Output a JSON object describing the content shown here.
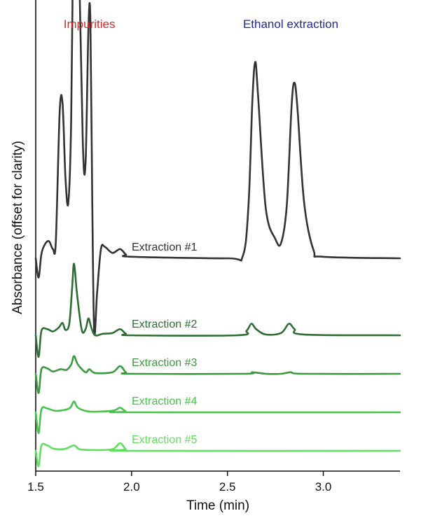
{
  "chart_data": {
    "type": "line",
    "title": "",
    "xlabel": "Time (min)",
    "ylabel": "Absorbance (offset for clarity)",
    "xlim": [
      1.5,
      3.4
    ],
    "xticks": [
      "1.5",
      "2.0",
      "2.5",
      "3.0"
    ],
    "grid": false,
    "legend": "none (series labelled inline above each trace)",
    "annotations": [
      {
        "text": "Impurities",
        "x": 1.78,
        "color": "#d42a2a"
      },
      {
        "text": "Ethanol extraction",
        "x": 2.83,
        "color": "#1f2a9c"
      }
    ],
    "series": [
      {
        "name": "Extraction #1",
        "color": "#333333",
        "baseline": 0,
        "values": [
          [
            1.5,
            0
          ],
          [
            1.515,
            -0.25
          ],
          [
            1.53,
            0.06
          ],
          [
            1.55,
            0.19
          ],
          [
            1.57,
            0.22
          ],
          [
            1.59,
            0.12
          ],
          [
            1.605,
            0.22
          ],
          [
            1.625,
            1.9
          ],
          [
            1.64,
            2.01
          ],
          [
            1.655,
            1.05
          ],
          [
            1.67,
            0.72
          ],
          [
            1.685,
            1.8
          ],
          [
            1.695,
            4.2
          ],
          [
            1.705,
            6.4
          ],
          [
            1.72,
            4.7
          ],
          [
            1.745,
            1.55
          ],
          [
            1.76,
            1.25
          ],
          [
            1.775,
            3.0
          ],
          [
            1.785,
            3.1
          ],
          [
            1.795,
            0.75
          ],
          [
            1.805,
            -0.95
          ],
          [
            1.82,
            -0.45
          ],
          [
            1.84,
            0.12
          ],
          [
            1.86,
            0.15
          ],
          [
            1.9,
            0.07
          ],
          [
            1.94,
            0.12
          ],
          [
            1.97,
            0.05
          ],
          [
            2.0,
            0.02
          ],
          [
            2.5,
            0.0
          ],
          [
            2.58,
            0.03
          ],
          [
            2.61,
            0.7
          ],
          [
            2.63,
            2.05
          ],
          [
            2.645,
            2.55
          ],
          [
            2.66,
            2.1
          ],
          [
            2.7,
            0.65
          ],
          [
            2.75,
            0.25
          ],
          [
            2.78,
            0.2
          ],
          [
            2.81,
            0.7
          ],
          [
            2.835,
            2.0
          ],
          [
            2.85,
            2.28
          ],
          [
            2.865,
            1.95
          ],
          [
            2.9,
            0.72
          ],
          [
            2.95,
            0.1
          ],
          [
            3.0,
            0.02
          ],
          [
            3.4,
            0.0
          ]
        ]
      },
      {
        "name": "Extraction #2",
        "color": "#2e6d33",
        "baseline": -1,
        "values": [
          [
            1.5,
            0
          ],
          [
            1.515,
            -0.28
          ],
          [
            1.53,
            0.06
          ],
          [
            1.56,
            0.08
          ],
          [
            1.59,
            0.05
          ],
          [
            1.62,
            0.1
          ],
          [
            1.64,
            0.16
          ],
          [
            1.655,
            0.07
          ],
          [
            1.675,
            0.15
          ],
          [
            1.69,
            0.62
          ],
          [
            1.7,
            0.93
          ],
          [
            1.715,
            0.55
          ],
          [
            1.74,
            0.07
          ],
          [
            1.76,
            0.08
          ],
          [
            1.775,
            0.22
          ],
          [
            1.79,
            0.1
          ],
          [
            1.81,
            0.0
          ],
          [
            1.85,
            0.02
          ],
          [
            1.9,
            0.03
          ],
          [
            1.94,
            0.08
          ],
          [
            1.97,
            0.02
          ],
          [
            2.0,
            0.0
          ],
          [
            2.55,
            0.0
          ],
          [
            2.6,
            0.06
          ],
          [
            2.625,
            0.15
          ],
          [
            2.65,
            0.08
          ],
          [
            2.7,
            0.01
          ],
          [
            2.78,
            0.03
          ],
          [
            2.82,
            0.15
          ],
          [
            2.85,
            0.08
          ],
          [
            2.9,
            0.01
          ],
          [
            3.4,
            0.0
          ]
        ]
      },
      {
        "name": "Extraction #3",
        "color": "#3a9a3e",
        "baseline": -1.5,
        "values": [
          [
            1.5,
            0
          ],
          [
            1.515,
            -0.25
          ],
          [
            1.53,
            0.06
          ],
          [
            1.56,
            0.07
          ],
          [
            1.59,
            0.03
          ],
          [
            1.63,
            0.06
          ],
          [
            1.66,
            0.05
          ],
          [
            1.685,
            0.12
          ],
          [
            1.7,
            0.23
          ],
          [
            1.72,
            0.12
          ],
          [
            1.76,
            0.02
          ],
          [
            1.78,
            0.06
          ],
          [
            1.81,
            0.01
          ],
          [
            1.9,
            0.02
          ],
          [
            1.94,
            0.1
          ],
          [
            1.97,
            0.02
          ],
          [
            2.0,
            0.0
          ],
          [
            2.58,
            0.0
          ],
          [
            2.63,
            0.02
          ],
          [
            2.7,
            0.0
          ],
          [
            2.78,
            0.0
          ],
          [
            2.83,
            0.02
          ],
          [
            2.9,
            0.0
          ],
          [
            3.4,
            0.0
          ]
        ]
      },
      {
        "name": "Extraction #4",
        "color": "#48c24a",
        "baseline": -2,
        "values": [
          [
            1.5,
            0
          ],
          [
            1.515,
            -0.27
          ],
          [
            1.53,
            0.04
          ],
          [
            1.56,
            0.05
          ],
          [
            1.6,
            0.02
          ],
          [
            1.65,
            0.03
          ],
          [
            1.68,
            0.06
          ],
          [
            1.7,
            0.14
          ],
          [
            1.72,
            0.06
          ],
          [
            1.78,
            0.01
          ],
          [
            1.9,
            0.02
          ],
          [
            1.94,
            0.06
          ],
          [
            1.97,
            0.01
          ],
          [
            2.0,
            0.0
          ],
          [
            3.4,
            0.0
          ]
        ]
      },
      {
        "name": "Extraction #5",
        "color": "#5fe05f",
        "baseline": -2.5,
        "values": [
          [
            1.5,
            0
          ],
          [
            1.515,
            -0.2
          ],
          [
            1.53,
            0.07
          ],
          [
            1.56,
            0.07
          ],
          [
            1.59,
            0.03
          ],
          [
            1.63,
            0.02
          ],
          [
            1.66,
            0.03
          ],
          [
            1.7,
            0.07
          ],
          [
            1.73,
            0.02
          ],
          [
            1.8,
            0.01
          ],
          [
            1.9,
            0.02
          ],
          [
            1.94,
            0.1
          ],
          [
            1.97,
            0.02
          ],
          [
            2.0,
            0.0
          ],
          [
            3.4,
            0.0
          ]
        ]
      }
    ]
  }
}
